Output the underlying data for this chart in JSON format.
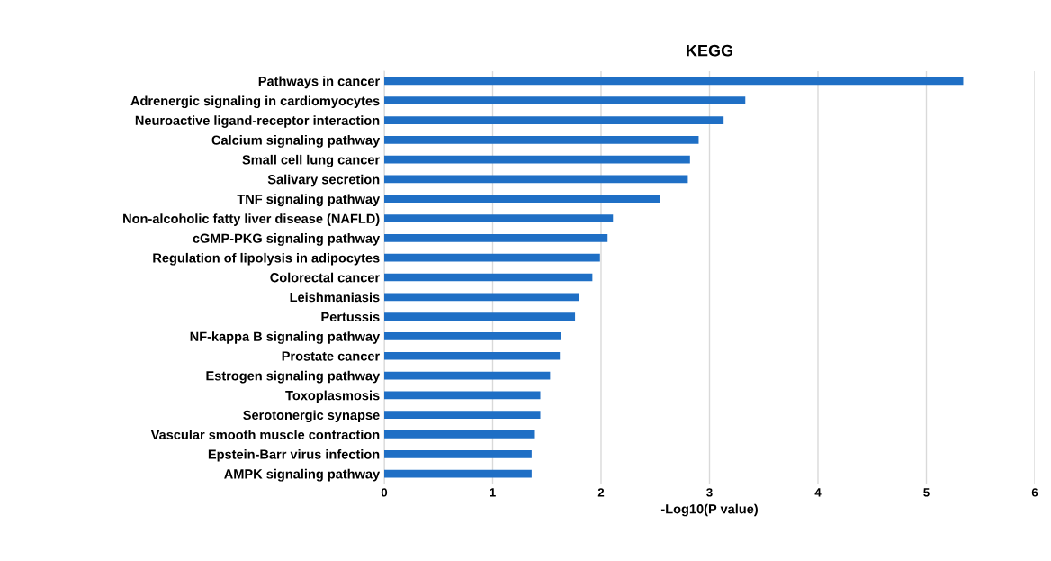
{
  "chart_data": {
    "type": "bar",
    "orientation": "horizontal",
    "title": "KEGG",
    "xlabel": "-Log10(P value)",
    "categories": [
      "Pathways in cancer",
      "Adrenergic signaling in cardiomyocytes",
      "Neuroactive ligand-receptor interaction",
      "Calcium signaling pathway",
      "Small cell lung cancer",
      "Salivary secretion",
      "TNF signaling pathway",
      "Non-alcoholic fatty liver disease (NAFLD)",
      "cGMP-PKG signaling pathway",
      "Regulation of lipolysis in adipocytes",
      "Colorectal cancer",
      "Leishmaniasis",
      "Pertussis",
      "NF-kappa B signaling pathway",
      "Prostate cancer",
      "Estrogen signaling pathway",
      "Toxoplasmosis",
      "Serotonergic synapse",
      "Vascular smooth muscle contraction",
      "Epstein-Barr virus infection",
      "AMPK signaling pathway"
    ],
    "values": [
      5.34,
      3.33,
      3.13,
      2.9,
      2.82,
      2.8,
      2.54,
      2.11,
      2.06,
      1.99,
      1.92,
      1.8,
      1.76,
      1.63,
      1.62,
      1.53,
      1.44,
      1.44,
      1.39,
      1.36,
      1.36
    ],
    "color": "#1f6fc5",
    "xlim": [
      0,
      6
    ],
    "xticks": [
      0,
      1,
      2,
      3,
      4,
      5,
      6
    ],
    "grid": "x"
  }
}
